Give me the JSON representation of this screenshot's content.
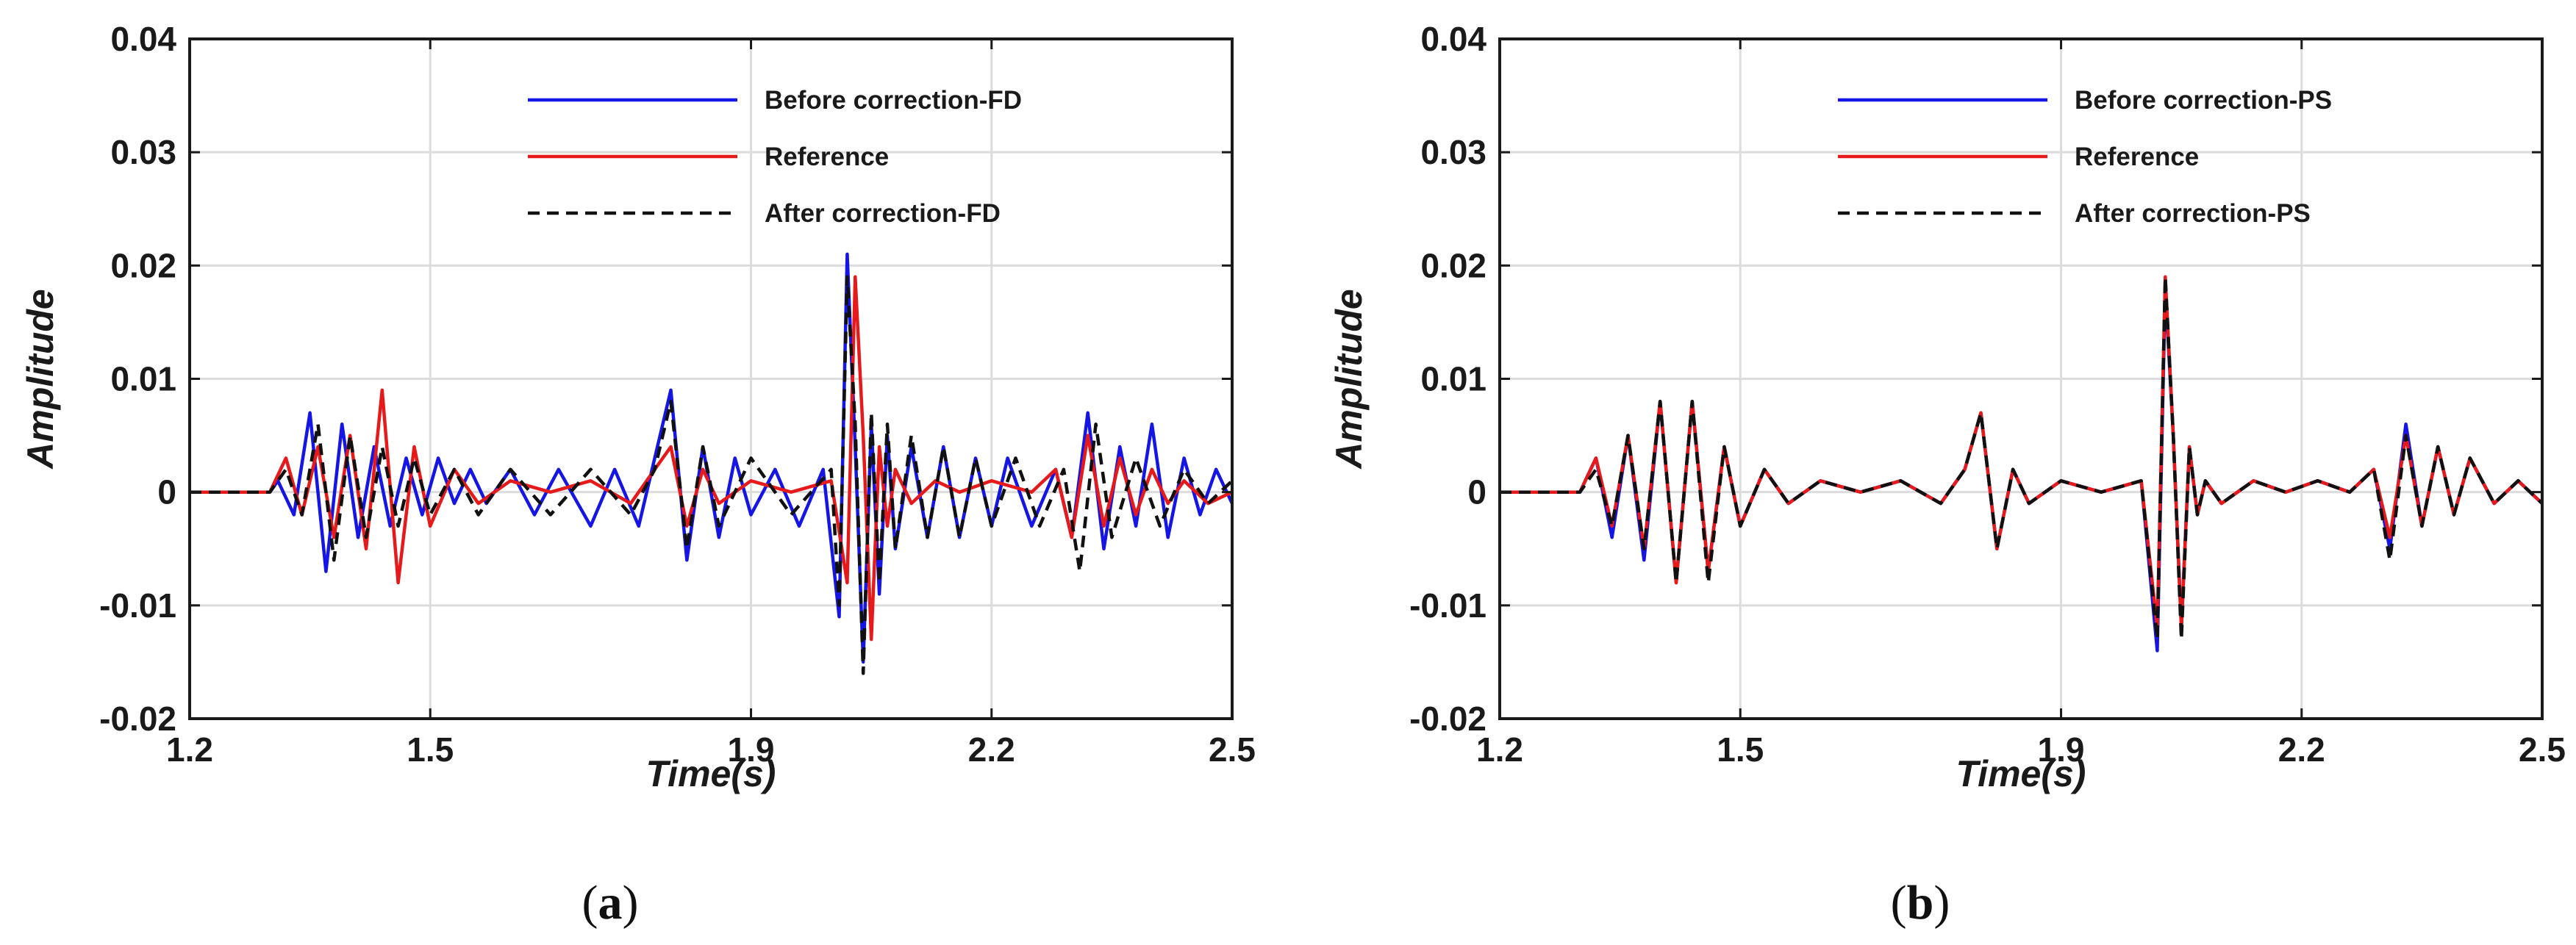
{
  "chart_data": [
    {
      "type": "line",
      "panel_label": "a",
      "caption_open": "(",
      "caption_close": ")",
      "xlabel": "Time(s)",
      "ylabel": "Amplitude",
      "xlim": [
        1.2,
        2.5
      ],
      "ylim": [
        -0.02,
        0.04
      ],
      "xticks": [
        1.2,
        1.5,
        1.9,
        2.2,
        2.5
      ],
      "xtick_labels": [
        "1.2",
        "1.5",
        "1.9",
        "2.2",
        "2.5"
      ],
      "yticks": [
        -0.02,
        -0.01,
        0,
        0.01,
        0.02,
        0.03,
        0.04
      ],
      "ytick_labels": [
        "-0.02",
        "-0.01",
        "0",
        "0.01",
        "0.02",
        "0.03",
        "0.04"
      ],
      "legend_position": "top-right",
      "series": [
        {
          "name": "Before correction-FD",
          "color": "#1515e6",
          "dash": "solid",
          "x": [
            1.2,
            1.3,
            1.31,
            1.33,
            1.35,
            1.37,
            1.39,
            1.41,
            1.43,
            1.45,
            1.47,
            1.49,
            1.51,
            1.53,
            1.55,
            1.57,
            1.6,
            1.63,
            1.66,
            1.7,
            1.73,
            1.76,
            1.78,
            1.8,
            1.82,
            1.84,
            1.86,
            1.88,
            1.9,
            1.93,
            1.96,
            1.99,
            2.01,
            2.02,
            2.03,
            2.04,
            2.05,
            2.06,
            2.07,
            2.08,
            2.1,
            2.12,
            2.14,
            2.16,
            2.18,
            2.2,
            2.22,
            2.25,
            2.28,
            2.3,
            2.32,
            2.34,
            2.36,
            2.38,
            2.4,
            2.42,
            2.44,
            2.46,
            2.48,
            2.5
          ],
          "y": [
            0,
            0,
            0.001,
            -0.002,
            0.007,
            -0.007,
            0.006,
            -0.004,
            0.004,
            -0.003,
            0.003,
            -0.002,
            0.003,
            -0.001,
            0.002,
            -0.001,
            0.002,
            -0.002,
            0.002,
            -0.003,
            0.002,
            -0.003,
            0.003,
            0.009,
            -0.006,
            0.004,
            -0.004,
            0.003,
            -0.002,
            0.002,
            -0.003,
            0.002,
            -0.011,
            0.021,
            0.004,
            -0.015,
            0.006,
            -0.009,
            0.005,
            -0.005,
            0.004,
            -0.004,
            0.004,
            -0.004,
            0.003,
            -0.003,
            0.003,
            -0.003,
            0.002,
            -0.004,
            0.007,
            -0.005,
            0.004,
            -0.003,
            0.006,
            -0.004,
            0.003,
            -0.002,
            0.002,
            -0.001
          ]
        },
        {
          "name": "Reference",
          "color": "#e61a1a",
          "dash": "solid",
          "x": [
            1.2,
            1.3,
            1.32,
            1.34,
            1.36,
            1.38,
            1.4,
            1.42,
            1.44,
            1.46,
            1.48,
            1.5,
            1.53,
            1.56,
            1.6,
            1.65,
            1.7,
            1.75,
            1.78,
            1.8,
            1.82,
            1.84,
            1.86,
            1.9,
            1.95,
            2.0,
            2.02,
            2.03,
            2.04,
            2.05,
            2.06,
            2.07,
            2.08,
            2.1,
            2.13,
            2.16,
            2.2,
            2.25,
            2.28,
            2.3,
            2.32,
            2.34,
            2.36,
            2.38,
            2.4,
            2.42,
            2.44,
            2.47,
            2.5
          ],
          "y": [
            0,
            0,
            0.003,
            -0.002,
            0.004,
            -0.004,
            0.005,
            -0.005,
            0.009,
            -0.008,
            0.004,
            -0.003,
            0.002,
            -0.001,
            0.001,
            0,
            0.001,
            -0.001,
            0.002,
            0.004,
            -0.003,
            0.002,
            -0.001,
            0.001,
            0,
            0.001,
            -0.008,
            0.019,
            0.005,
            -0.013,
            0.004,
            -0.003,
            0.002,
            -0.001,
            0.001,
            0,
            0.001,
            0,
            0.002,
            -0.004,
            0.005,
            -0.003,
            0.003,
            -0.002,
            0.002,
            -0.001,
            0.001,
            -0.001,
            0
          ]
        },
        {
          "name": "After correction-FD",
          "color": "#111111",
          "dash": "dashed",
          "x": [
            1.2,
            1.3,
            1.32,
            1.34,
            1.36,
            1.38,
            1.4,
            1.42,
            1.44,
            1.46,
            1.48,
            1.5,
            1.53,
            1.56,
            1.6,
            1.65,
            1.7,
            1.75,
            1.78,
            1.8,
            1.82,
            1.84,
            1.86,
            1.9,
            1.95,
            2.0,
            2.01,
            2.02,
            2.03,
            2.04,
            2.05,
            2.06,
            2.07,
            2.08,
            2.1,
            2.12,
            2.14,
            2.16,
            2.18,
            2.2,
            2.23,
            2.26,
            2.29,
            2.31,
            2.33,
            2.35,
            2.38,
            2.41,
            2.44,
            2.47,
            2.5
          ],
          "y": [
            0,
            0,
            0.002,
            -0.002,
            0.006,
            -0.006,
            0.005,
            -0.004,
            0.004,
            -0.003,
            0.003,
            -0.002,
            0.002,
            -0.002,
            0.002,
            -0.002,
            0.002,
            -0.002,
            0.002,
            0.008,
            -0.005,
            0.004,
            -0.003,
            0.003,
            -0.002,
            0.002,
            -0.01,
            0.019,
            0.006,
            -0.016,
            0.007,
            -0.008,
            0.006,
            -0.005,
            0.005,
            -0.004,
            0.004,
            -0.004,
            0.003,
            -0.003,
            0.003,
            -0.003,
            0.002,
            -0.007,
            0.006,
            -0.004,
            0.003,
            -0.003,
            0.002,
            -0.001,
            0.001
          ]
        }
      ]
    },
    {
      "type": "line",
      "panel_label": "b",
      "caption_open": "(",
      "caption_close": ")",
      "xlabel": "Time(s)",
      "ylabel": "Amplitude",
      "xlim": [
        1.2,
        2.5
      ],
      "ylim": [
        -0.02,
        0.04
      ],
      "xticks": [
        1.2,
        1.5,
        1.9,
        2.2,
        2.5
      ],
      "xtick_labels": [
        "1.2",
        "1.5",
        "1.9",
        "2.2",
        "2.5"
      ],
      "yticks": [
        -0.02,
        -0.01,
        0,
        0.01,
        0.02,
        0.03,
        0.04
      ],
      "ytick_labels": [
        "-0.02",
        "-0.01",
        "0",
        "0.01",
        "0.02",
        "0.03",
        "0.04"
      ],
      "legend_position": "top-right",
      "series": [
        {
          "name": "Before correction-PS",
          "color": "#1515e6",
          "dash": "solid",
          "x": [
            1.2,
            1.3,
            1.32,
            1.34,
            1.36,
            1.38,
            1.4,
            1.42,
            1.44,
            1.46,
            1.48,
            1.5,
            1.53,
            1.56,
            1.6,
            1.65,
            1.7,
            1.75,
            1.78,
            1.8,
            1.82,
            1.84,
            1.86,
            1.9,
            1.95,
            2.0,
            2.02,
            2.03,
            2.04,
            2.05,
            2.06,
            2.07,
            2.08,
            2.1,
            2.14,
            2.18,
            2.22,
            2.26,
            2.29,
            2.31,
            2.33,
            2.35,
            2.37,
            2.39,
            2.41,
            2.44,
            2.47,
            2.5
          ],
          "y": [
            0,
            0,
            0.003,
            -0.004,
            0.005,
            -0.006,
            0.008,
            -0.008,
            0.008,
            -0.007,
            0.004,
            -0.003,
            0.002,
            -0.001,
            0.001,
            0,
            0.001,
            -0.001,
            0.002,
            0.007,
            -0.005,
            0.002,
            -0.001,
            0.001,
            0,
            0.001,
            -0.014,
            0.018,
            0.005,
            -0.012,
            0.004,
            -0.002,
            0.001,
            -0.001,
            0.001,
            0,
            0.001,
            0,
            0.002,
            -0.005,
            0.006,
            -0.003,
            0.004,
            -0.002,
            0.003,
            -0.001,
            0.001,
            -0.001
          ]
        },
        {
          "name": "Reference",
          "color": "#e61a1a",
          "dash": "solid",
          "x": [
            1.2,
            1.3,
            1.32,
            1.34,
            1.36,
            1.38,
            1.4,
            1.42,
            1.44,
            1.46,
            1.48,
            1.5,
            1.53,
            1.56,
            1.6,
            1.65,
            1.7,
            1.75,
            1.78,
            1.8,
            1.82,
            1.84,
            1.86,
            1.9,
            1.95,
            2.0,
            2.02,
            2.03,
            2.04,
            2.05,
            2.06,
            2.07,
            2.08,
            2.1,
            2.14,
            2.18,
            2.22,
            2.26,
            2.29,
            2.31,
            2.33,
            2.35,
            2.37,
            2.39,
            2.41,
            2.44,
            2.47,
            2.5
          ],
          "y": [
            0,
            0,
            0.003,
            -0.003,
            0.005,
            -0.005,
            0.008,
            -0.008,
            0.008,
            -0.007,
            0.004,
            -0.003,
            0.002,
            -0.001,
            0.001,
            0,
            0.001,
            -0.001,
            0.002,
            0.007,
            -0.005,
            0.002,
            -0.001,
            0.001,
            0,
            0.001,
            -0.012,
            0.019,
            0.005,
            -0.012,
            0.004,
            -0.002,
            0.001,
            -0.001,
            0.001,
            0,
            0.001,
            0,
            0.002,
            -0.004,
            0.005,
            -0.003,
            0.004,
            -0.002,
            0.003,
            -0.001,
            0.001,
            -0.001
          ]
        },
        {
          "name": "After correction-PS",
          "color": "#111111",
          "dash": "dashed",
          "x": [
            1.2,
            1.3,
            1.32,
            1.34,
            1.36,
            1.38,
            1.4,
            1.42,
            1.44,
            1.46,
            1.48,
            1.5,
            1.53,
            1.56,
            1.6,
            1.65,
            1.7,
            1.75,
            1.78,
            1.8,
            1.82,
            1.84,
            1.86,
            1.9,
            1.95,
            2.0,
            2.02,
            2.03,
            2.04,
            2.05,
            2.06,
            2.07,
            2.08,
            2.1,
            2.14,
            2.18,
            2.22,
            2.26,
            2.29,
            2.31,
            2.33,
            2.35,
            2.37,
            2.39,
            2.41,
            2.44,
            2.47,
            2.5
          ],
          "y": [
            0,
            0,
            0.002,
            -0.003,
            0.005,
            -0.005,
            0.008,
            -0.008,
            0.008,
            -0.008,
            0.004,
            -0.003,
            0.002,
            -0.001,
            0.001,
            0,
            0.001,
            -0.001,
            0.002,
            0.007,
            -0.005,
            0.002,
            -0.001,
            0.001,
            0,
            0.001,
            -0.013,
            0.019,
            0.005,
            -0.013,
            0.004,
            -0.002,
            0.001,
            -0.001,
            0.001,
            0,
            0.001,
            0,
            0.002,
            -0.006,
            0.005,
            -0.003,
            0.004,
            -0.002,
            0.003,
            -0.001,
            0.001,
            -0.001
          ]
        }
      ]
    }
  ]
}
